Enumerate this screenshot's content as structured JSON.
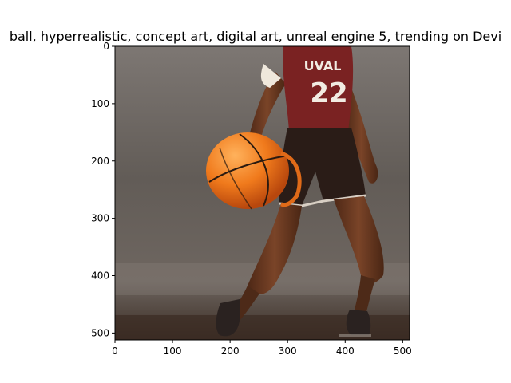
{
  "figure": {
    "title": "ball,  hyperrealistic, concept art, digital art, unreal engine 5, trending on Devi"
  },
  "image": {
    "subject": "basketball player dribbling a basketball",
    "jersey_text": "UVAL",
    "jersey_number": "22",
    "colors": {
      "jersey": "#7a2222",
      "shorts": "#2a1c17",
      "ball": "#f07a1c",
      "skin": "#6a3a22",
      "background_top": "#7a7470",
      "background_bottom": "#3a2c24"
    }
  },
  "axes": {
    "x_ticks": [
      "0",
      "100",
      "200",
      "300",
      "400",
      "500"
    ],
    "y_ticks": [
      "0",
      "100",
      "200",
      "300",
      "400",
      "500"
    ],
    "x_tick_values": [
      0,
      100,
      200,
      300,
      400,
      500
    ],
    "y_tick_values": [
      0,
      100,
      200,
      300,
      400,
      500
    ],
    "xlim": [
      0,
      512
    ],
    "ylim": [
      512,
      0
    ]
  }
}
